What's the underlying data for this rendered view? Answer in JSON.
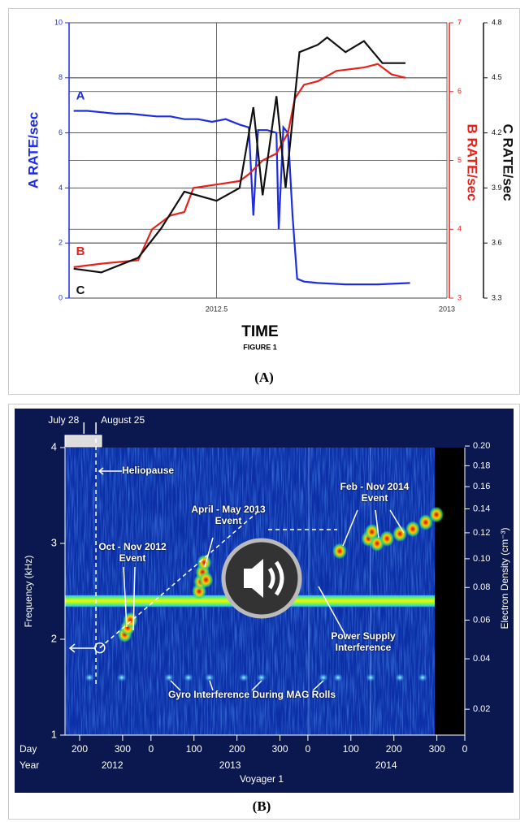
{
  "chart_data": [
    {
      "type": "line",
      "x_label": "TIME",
      "caption": "FIGURE 1",
      "panel_label": "(A)",
      "xlim": [
        2012.18,
        2013.0
      ],
      "xticks": [
        2012.5,
        2013
      ],
      "ylim": [
        0,
        10
      ],
      "yticks": [
        0,
        2,
        4,
        6,
        8,
        10
      ],
      "y_label": "A RATE/sec",
      "y2lim": [
        3,
        7
      ],
      "y2ticks": [
        3,
        4,
        5,
        6,
        7
      ],
      "y2_label": "B RATE/sec",
      "y3lim": [
        3.3,
        4.8
      ],
      "y3ticks": [
        3.3,
        3.6,
        3.9,
        4.2,
        4.5,
        4.8
      ],
      "y3_label": "C RATE/sec",
      "grid": true,
      "series": [
        {
          "name": "A",
          "color": "#1f2de0",
          "x": [
            2012.19,
            2012.22,
            2012.25,
            2012.28,
            2012.31,
            2012.34,
            2012.37,
            2012.4,
            2012.43,
            2012.46,
            2012.49,
            2012.52,
            2012.55,
            2012.57,
            2012.58,
            2012.59,
            2012.61,
            2012.63,
            2012.635,
            2012.645,
            2012.655,
            2012.665,
            2012.675,
            2012.69,
            2012.72,
            2012.78,
            2012.85,
            2012.92
          ],
          "values": [
            6.8,
            6.8,
            6.75,
            6.7,
            6.7,
            6.65,
            6.6,
            6.6,
            6.5,
            6.5,
            6.4,
            6.5,
            6.3,
            6.2,
            3.0,
            6.1,
            6.1,
            6.0,
            2.5,
            6.2,
            6.0,
            3.0,
            0.7,
            0.6,
            0.55,
            0.5,
            0.5,
            0.55
          ]
        },
        {
          "name": "B",
          "color": "#e8201c",
          "axis": "y2",
          "x": [
            2012.19,
            2012.25,
            2012.33,
            2012.36,
            2012.4,
            2012.43,
            2012.45,
            2012.5,
            2012.55,
            2012.57,
            2012.6,
            2012.63,
            2012.655,
            2012.67,
            2012.69,
            2012.72,
            2012.76,
            2012.82,
            2012.85,
            2012.88,
            2012.91
          ],
          "values": [
            3.45,
            3.5,
            3.55,
            4.0,
            4.2,
            4.25,
            4.6,
            4.65,
            4.7,
            4.8,
            5.0,
            5.1,
            5.4,
            5.9,
            6.1,
            6.15,
            6.3,
            6.35,
            6.4,
            6.25,
            6.2
          ]
        },
        {
          "name": "C",
          "color": "#111111",
          "axis": "y3",
          "x": [
            2012.19,
            2012.25,
            2012.33,
            2012.38,
            2012.43,
            2012.5,
            2012.55,
            2012.58,
            2012.6,
            2012.63,
            2012.65,
            2012.68,
            2012.72,
            2012.74,
            2012.78,
            2012.82,
            2012.86,
            2012.91
          ],
          "values": [
            3.46,
            3.44,
            3.52,
            3.68,
            3.88,
            3.83,
            3.9,
            4.34,
            3.86,
            4.4,
            3.9,
            4.64,
            4.68,
            4.72,
            4.64,
            4.7,
            4.58,
            4.58
          ]
        }
      ]
    },
    {
      "type": "spectrogram",
      "panel_label": "(B)",
      "x_label": "Voyager 1",
      "day_label": "Day",
      "year_label": "Year",
      "y_label": "Frequency (kHz)",
      "y2_label": "Electron Density (cm⁻³)",
      "xlim": [
        166,
        1096
      ],
      "xticks": [
        200,
        300,
        {
          "value": 366,
          "label": "0"
        },
        {
          "value": 466,
          "label": "100"
        },
        {
          "value": 566,
          "label": "200"
        },
        {
          "value": 666,
          "label": "300"
        },
        {
          "value": 731,
          "label": "0"
        },
        {
          "value": 831,
          "label": "100"
        },
        {
          "value": 931,
          "label": "200"
        },
        {
          "value": 1031,
          "label": "300"
        },
        {
          "value": 1096,
          "label": "0"
        }
      ],
      "year_ticks": [
        {
          "value": 276,
          "label": "2012"
        },
        {
          "value": 550,
          "label": "2013"
        },
        {
          "value": 913,
          "label": "2014"
        }
      ],
      "ylim": [
        1,
        4
      ],
      "yticks": [
        1,
        2,
        3,
        4
      ],
      "y2scale": "sqrt",
      "y2lim": [
        0.0124,
        0.1984
      ],
      "y2ticks": [
        0.02,
        0.04,
        0.06,
        0.08,
        {
          "value": 0.1,
          "label": "0.10"
        },
        0.12,
        0.14,
        0.16,
        0.18,
        {
          "value": 0.2,
          "label": "0.20"
        }
      ],
      "dates": [
        {
          "x": 210,
          "label": "July 28"
        },
        {
          "x": 238,
          "label": "August 25"
        }
      ],
      "heliopause": {
        "x": 238,
        "label": "Heliopause"
      },
      "power_supply": {
        "y": 2.4,
        "label": "Power Supply Interference"
      },
      "gyro": {
        "y": 1.6,
        "x": [
          223,
          298,
          408,
          453,
          502,
          582,
          623,
          767,
          801,
          877,
          945,
          998
        ],
        "label": "Gyro Interference During MAG Rolls"
      },
      "trend": {
        "x": [
          247,
          620
        ],
        "y": [
          1.91,
          3.35
        ]
      },
      "events": [
        {
          "label": "Oct - Nov 2012 Event",
          "x": [
            305,
            312,
            318
          ],
          "y": [
            2.05,
            2.12,
            2.2
          ]
        },
        {
          "label": "April - May 2013 Event",
          "x": [
            478,
            482,
            486,
            490,
            494
          ],
          "y": [
            2.5,
            2.6,
            2.7,
            2.8,
            2.62
          ]
        },
        {
          "label": "Feb - Nov 2014 Event",
          "x": [
            805,
            872,
            880,
            892,
            915,
            945,
            975,
            1005,
            1030
          ],
          "y": [
            2.92,
            3.05,
            3.12,
            3.0,
            3.05,
            3.1,
            3.15,
            3.22,
            3.3
          ]
        }
      ]
    }
  ]
}
